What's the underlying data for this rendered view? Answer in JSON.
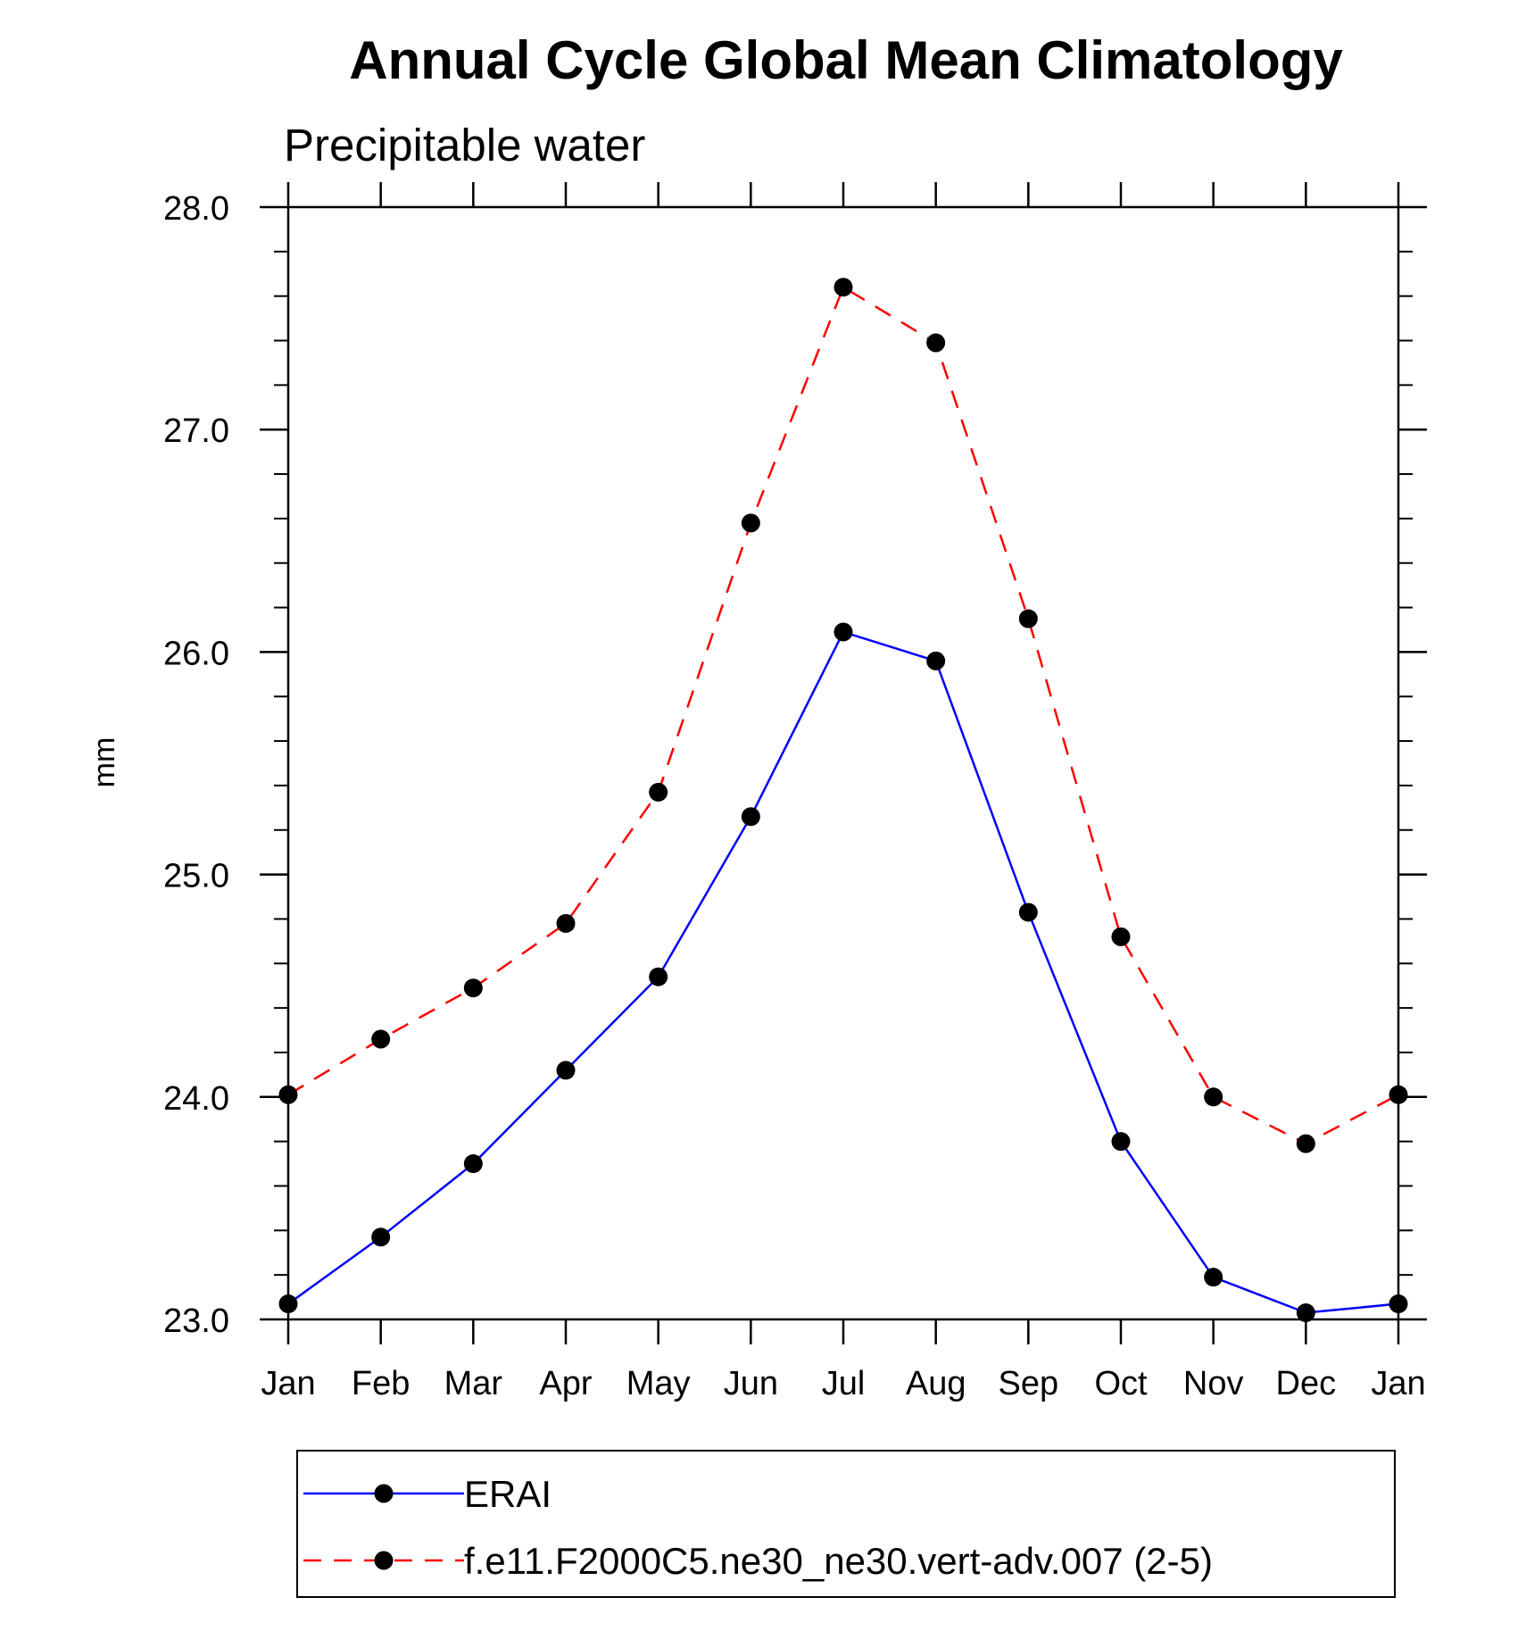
{
  "chart_data": {
    "type": "line",
    "title": "Annual Cycle Global Mean Climatology",
    "subtitle": "Precipitable water",
    "xlabel": "",
    "ylabel": "mm",
    "categories": [
      "Jan",
      "Feb",
      "Mar",
      "Apr",
      "May",
      "Jun",
      "Jul",
      "Aug",
      "Sep",
      "Oct",
      "Nov",
      "Dec",
      "Jan"
    ],
    "yticks": [
      "23.0",
      "24.0",
      "25.0",
      "26.0",
      "27.0",
      "28.0"
    ],
    "ylim": [
      23.0,
      28.0
    ],
    "grid": false,
    "legend_position": "bottom",
    "series": [
      {
        "name": "ERAI",
        "color": "#0000ff",
        "line_style": "solid",
        "marker": "filled-circle",
        "values": [
          23.07,
          23.37,
          23.7,
          24.12,
          24.54,
          25.26,
          26.09,
          25.96,
          24.83,
          23.8,
          23.19,
          23.03,
          23.07
        ]
      },
      {
        "name": "f.e11.F2000C5.ne30_ne30.vert-adv.007 (2-5)",
        "color": "#ff0000",
        "line_style": "dashed",
        "marker": "filled-circle",
        "values": [
          24.01,
          24.26,
          24.49,
          24.78,
          25.37,
          26.58,
          27.64,
          27.39,
          26.15,
          24.72,
          24.0,
          23.79,
          24.01
        ]
      }
    ]
  }
}
